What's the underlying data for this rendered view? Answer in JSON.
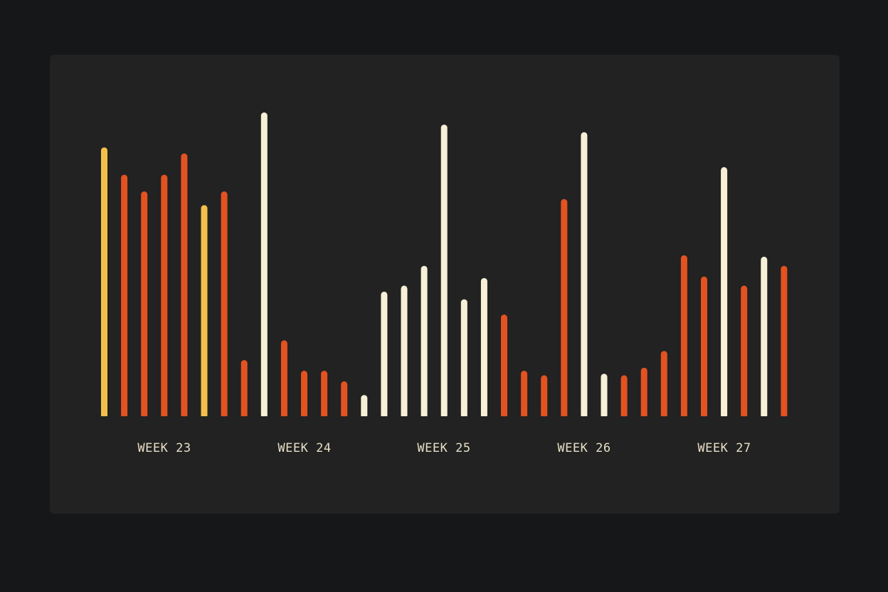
{
  "chart_data": {
    "type": "bar",
    "title": "",
    "xlabel": "",
    "ylabel": "",
    "ylim": [
      0,
      100
    ],
    "grid": false,
    "week_labels": [
      "WEEK 23",
      "WEEK 24",
      "WEEK 25",
      "WEEK 26",
      "WEEK 27"
    ],
    "values": [
      88.5,
      79.5,
      74,
      79.5,
      86.5,
      69.5,
      74,
      18.5,
      100,
      25,
      15,
      15,
      11.5,
      7,
      41,
      43,
      49.5,
      96,
      38.5,
      45.5,
      33.5,
      15,
      13.5,
      71.5,
      93.5,
      14,
      13.5,
      16,
      21.5,
      53,
      46,
      82,
      43,
      52.5,
      49.5
    ],
    "bar_colors": [
      "yellow",
      "orange",
      "orange",
      "orange",
      "orange",
      "yellow",
      "orange",
      "orange",
      "cream",
      "orange",
      "orange",
      "orange",
      "orange",
      "cream",
      "cream",
      "cream",
      "cream",
      "cream",
      "cream",
      "cream",
      "orange",
      "orange",
      "orange",
      "orange",
      "cream",
      "cream",
      "orange",
      "orange",
      "orange",
      "orange",
      "orange",
      "cream",
      "orange",
      "cream",
      "orange"
    ],
    "colors": {
      "yellow": "#f2c04a",
      "orange": "#e35221",
      "cream": "#f8f0d6",
      "label": "#e8dfc7"
    }
  }
}
